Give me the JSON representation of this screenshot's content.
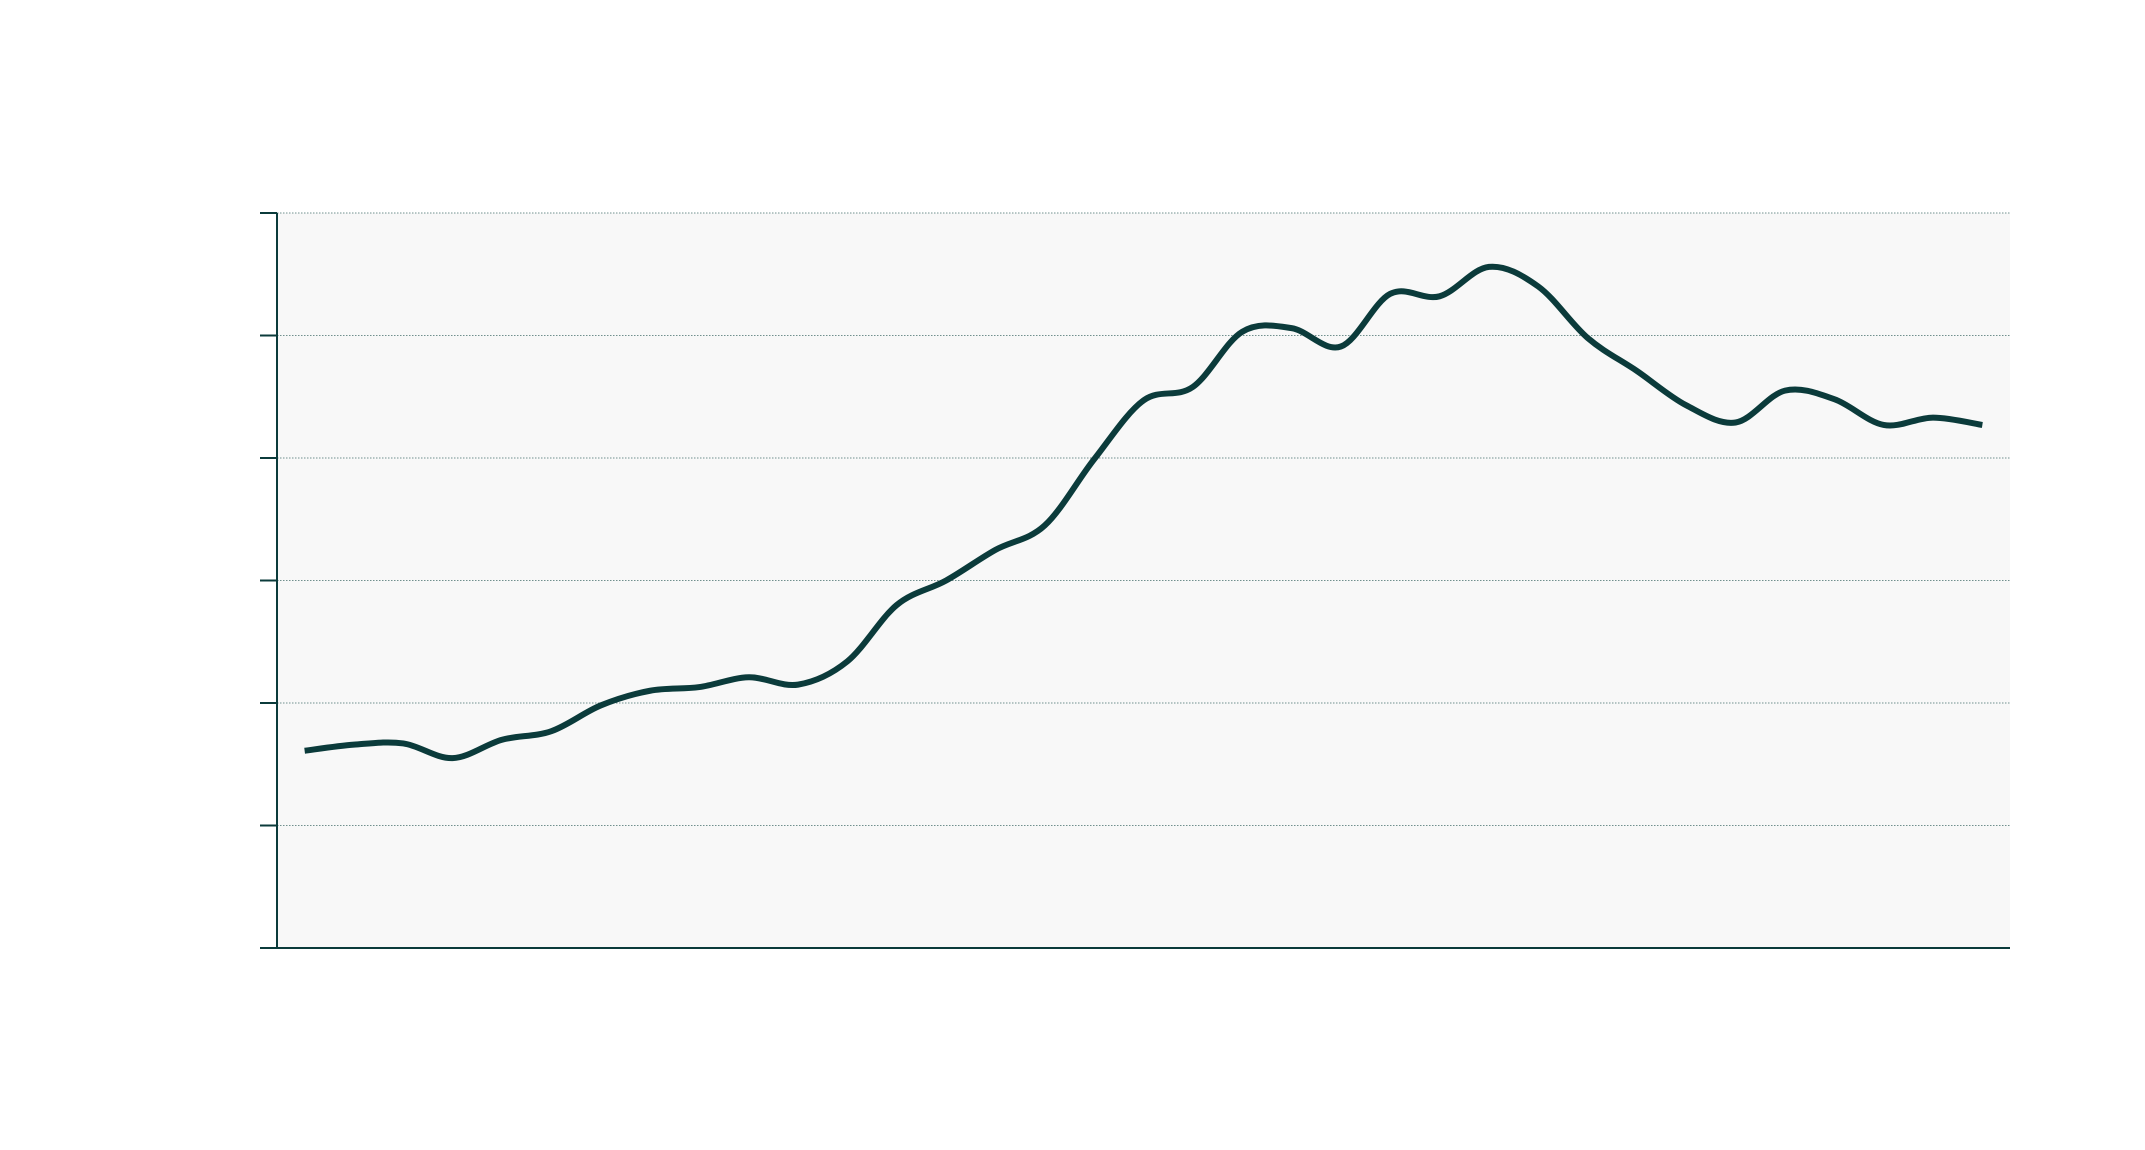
{
  "chart_data": {
    "type": "line",
    "title": "",
    "xlabel": "",
    "ylabel": "",
    "grid": true,
    "legend": "none",
    "ylim": [
      0,
      6
    ],
    "yticks": [
      0,
      1,
      2,
      3,
      4,
      5,
      6
    ],
    "ytick_labels": [
      "",
      "",
      "",
      "",
      "",
      "",
      ""
    ],
    "xlim": [
      -0.56,
      34.56
    ],
    "series": [
      {
        "color": "#0b3b3b",
        "x": [
          0,
          1,
          2,
          3,
          4,
          5,
          6,
          7,
          8,
          9,
          10,
          11,
          12,
          13,
          14,
          15,
          16,
          17,
          18,
          19,
          20,
          21,
          22,
          23,
          24,
          25,
          26,
          27,
          28,
          29,
          30,
          31,
          32,
          33,
          34
        ],
        "values": [
          1.61,
          1.66,
          1.67,
          1.55,
          1.7,
          1.77,
          1.98,
          2.1,
          2.13,
          2.21,
          2.15,
          2.34,
          2.8,
          3.0,
          3.25,
          3.45,
          3.99,
          4.47,
          4.58,
          5.03,
          5.06,
          4.91,
          5.34,
          5.32,
          5.56,
          5.4,
          4.98,
          4.71,
          4.43,
          4.29,
          4.55,
          4.48,
          4.27,
          4.33,
          4.27
        ]
      }
    ]
  }
}
